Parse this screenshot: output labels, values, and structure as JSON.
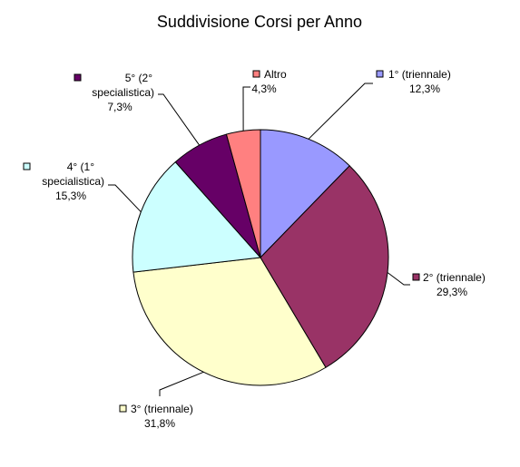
{
  "chart_data": {
    "type": "pie",
    "title": "Suddivisione Corsi per Anno",
    "slices": [
      {
        "name": "1° (triennale)",
        "value": 12.3,
        "pct_label": "12,3%",
        "color": "#9999ff",
        "label_lines": [
          "1° (triennale)"
        ]
      },
      {
        "name": "2° (triennale)",
        "value": 29.3,
        "pct_label": "29,3%",
        "color": "#993366",
        "label_lines": [
          "2° (triennale)"
        ]
      },
      {
        "name": "3° (triennale)",
        "value": 31.8,
        "pct_label": "31,8%",
        "color": "#ffffcc",
        "label_lines": [
          "3° (triennale)"
        ]
      },
      {
        "name": "4° (1° specialistica)",
        "value": 15.3,
        "pct_label": "15,3%",
        "color": "#ccffff",
        "label_lines": [
          "4° (1°",
          "specialistica)"
        ]
      },
      {
        "name": "5° (2° specialistica)",
        "value": 7.3,
        "pct_label": "7,3%",
        "color": "#660066",
        "label_lines": [
          "5° (2°",
          "specialistica)"
        ]
      },
      {
        "name": "Altro",
        "value": 4.3,
        "pct_label": "4,3%",
        "color": "#ff8080",
        "label_lines": [
          "Altro"
        ]
      }
    ]
  }
}
